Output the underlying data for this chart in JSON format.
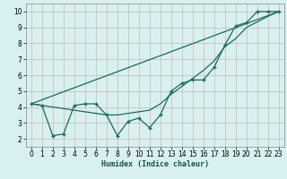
{
  "xlabel": "Humidex (Indice chaleur)",
  "bg_color": "#d8f0f0",
  "grid_color": "#c8b8b8",
  "line_color": "#1a6b5a",
  "xlim": [
    -0.5,
    23.5
  ],
  "ylim": [
    1.5,
    10.5
  ],
  "xticks": [
    0,
    1,
    2,
    3,
    4,
    5,
    6,
    7,
    8,
    9,
    10,
    11,
    12,
    13,
    14,
    15,
    16,
    17,
    18,
    19,
    20,
    21,
    22,
    23
  ],
  "yticks": [
    2,
    3,
    4,
    5,
    6,
    7,
    8,
    9,
    10
  ],
  "line1_x": [
    0,
    1,
    2,
    3,
    4,
    5,
    6,
    7,
    8,
    9,
    10,
    11,
    12,
    13,
    14,
    15,
    16,
    17,
    18,
    19,
    20,
    21,
    22,
    23
  ],
  "line1_y": [
    4.2,
    4.1,
    2.2,
    2.3,
    4.1,
    4.2,
    4.2,
    3.5,
    2.2,
    3.1,
    3.3,
    2.7,
    3.5,
    5.0,
    5.5,
    5.7,
    5.7,
    6.5,
    7.9,
    9.1,
    9.3,
    10.0,
    10.0,
    10.0
  ],
  "line2_x": [
    0,
    5,
    6,
    7,
    8,
    9,
    10,
    11,
    12,
    13,
    14,
    15,
    16,
    17,
    18,
    19,
    20,
    21,
    22,
    23
  ],
  "line2_y": [
    4.2,
    3.7,
    3.6,
    3.5,
    3.5,
    3.6,
    3.7,
    3.8,
    4.2,
    4.8,
    5.3,
    5.8,
    6.3,
    6.9,
    7.8,
    8.3,
    9.0,
    9.35,
    9.7,
    10.0
  ],
  "line3_x": [
    0,
    23
  ],
  "line3_y": [
    4.2,
    10.0
  ]
}
